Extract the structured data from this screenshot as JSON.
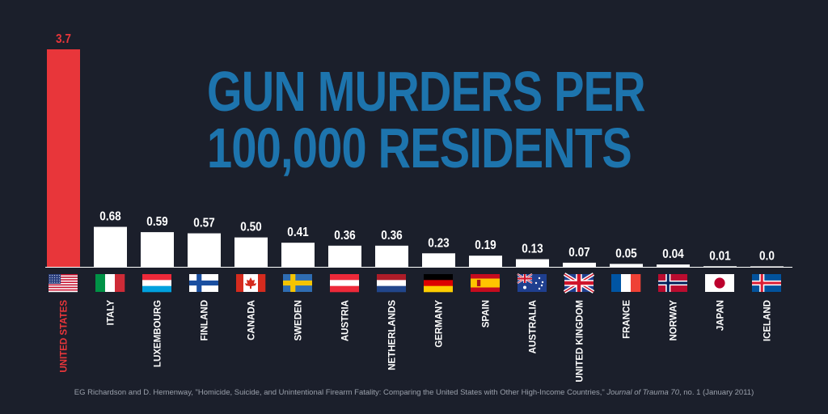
{
  "chart_data": {
    "type": "bar",
    "title": "GUN MURDERS PER 100,000 RESIDENTS",
    "title_lines": [
      "GUN MURDERS PER",
      "100,000 RESIDENTS"
    ],
    "categories": [
      "UNITED STATES",
      "ITALY",
      "LUXEMBOURG",
      "FINLAND",
      "CANADA",
      "SWEDEN",
      "AUSTRIA",
      "NETHERLANDS",
      "GERMANY",
      "SPAIN",
      "AUSTRALIA",
      "UNITED KINGDOM",
      "FRANCE",
      "NORWAY",
      "JAPAN",
      "ICELAND"
    ],
    "values": [
      3.7,
      0.68,
      0.59,
      0.57,
      0.5,
      0.41,
      0.36,
      0.36,
      0.23,
      0.19,
      0.13,
      0.07,
      0.05,
      0.04,
      0.01,
      0.0
    ],
    "data_labels": [
      "3.7",
      "0.68",
      "0.59",
      "0.57",
      "0.50",
      "0.41",
      "0.36",
      "0.36",
      "0.23",
      "0.19",
      "0.13",
      "0.07",
      "0.05",
      "0.04",
      "0.01",
      "0.0"
    ],
    "flags": [
      "us-flag-icon",
      "italy-flag-icon",
      "luxembourg-flag-icon",
      "finland-flag-icon",
      "canada-flag-icon",
      "sweden-flag-icon",
      "austria-flag-icon",
      "netherlands-flag-icon",
      "germany-flag-icon",
      "spain-flag-icon",
      "australia-flag-icon",
      "uk-flag-icon",
      "france-flag-icon",
      "norway-flag-icon",
      "japan-flag-icon",
      "iceland-flag-icon"
    ],
    "ylim": [
      0,
      3.7
    ],
    "xlabel": "",
    "ylabel": "",
    "highlight_index": 0
  },
  "colors": {
    "background": "#1b1f2b",
    "highlight": "#e8363a",
    "bar": "#ffffff",
    "title": "#1d74ad",
    "label": "#ffffff",
    "source": "#9aa0ab"
  },
  "source": {
    "part1": "EG Richardson and D. Hemenway, \"Homicide, Suicide, and Unintentional Firearm Fatality: Comparing the United States with Other High-Income Countries,\" ",
    "journal": "Journal of Trauma 70",
    "part2": ", no. 1 (January 2011)"
  }
}
